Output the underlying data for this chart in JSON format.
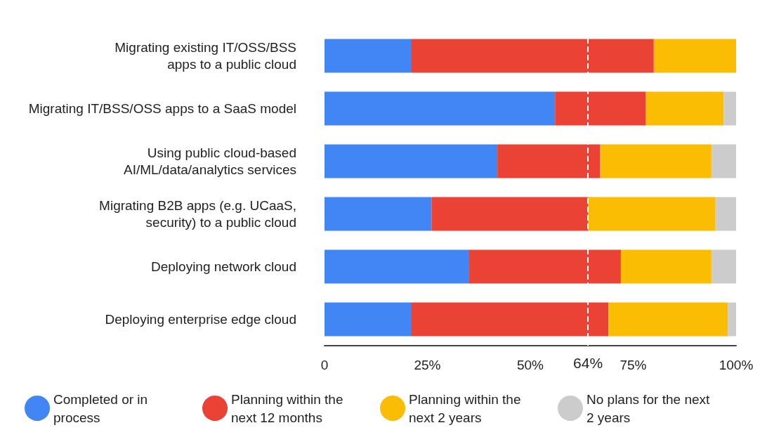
{
  "chart_data": {
    "type": "bar",
    "orientation": "horizontal",
    "stacked": true,
    "categories": [
      "Migrating existing IT/OSS/BSS\napps to a public cloud",
      "Migrating IT/BSS/OSS apps to a SaaS model",
      "Using public cloud-based\nAI/ML/data/analytics services",
      "Migrating B2B apps (e.g. UCaaS,\nsecurity) to a public cloud",
      "Deploying network cloud",
      "Deploying enterprise edge cloud"
    ],
    "series": [
      {
        "name": "Completed or in process",
        "color": "#4285f4",
        "values": [
          21,
          56,
          42,
          26,
          35,
          21
        ]
      },
      {
        "name": "Planning within the next 12 months",
        "color": "#ea4335",
        "values": [
          59,
          22,
          25,
          38,
          37,
          48
        ]
      },
      {
        "name": "Planning within the next 2 years",
        "color": "#fbbc04",
        "values": [
          20,
          19,
          27,
          31,
          22,
          29
        ]
      },
      {
        "name": "No plans for the next 2 years",
        "color": "#cccccc",
        "values": [
          0,
          3,
          6,
          5,
          6,
          2
        ]
      }
    ],
    "xlim": [
      0,
      100
    ],
    "xticks": [
      0,
      {
        "value": 25,
        "label": "25%"
      },
      {
        "value": 50,
        "label": "50%"
      },
      {
        "value": 75,
        "label": "75%"
      },
      {
        "value": 100,
        "label": "100%"
      }
    ],
    "ref_lines": [
      {
        "axis": "x",
        "value": 64,
        "label": "64%",
        "color": "#ffffff",
        "line_style": "dashed"
      }
    ],
    "grid": false,
    "legend": "bottom"
  }
}
